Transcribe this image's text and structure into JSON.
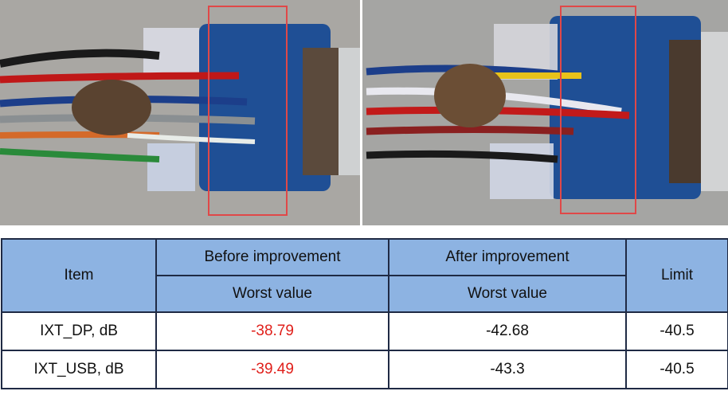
{
  "table": {
    "header": {
      "item": "Item",
      "before": "Before improvement",
      "after": "After improvement",
      "limit": "Limit",
      "before_sub": "Worst value",
      "after_sub": "Worst value"
    },
    "rows": [
      [
        "IXT_DP, dB",
        "-38.79",
        "-42.68",
        "-40.5"
      ],
      [
        "IXT_USB, dB",
        "-39.49",
        "-43.3",
        "-40.5"
      ]
    ]
  }
}
